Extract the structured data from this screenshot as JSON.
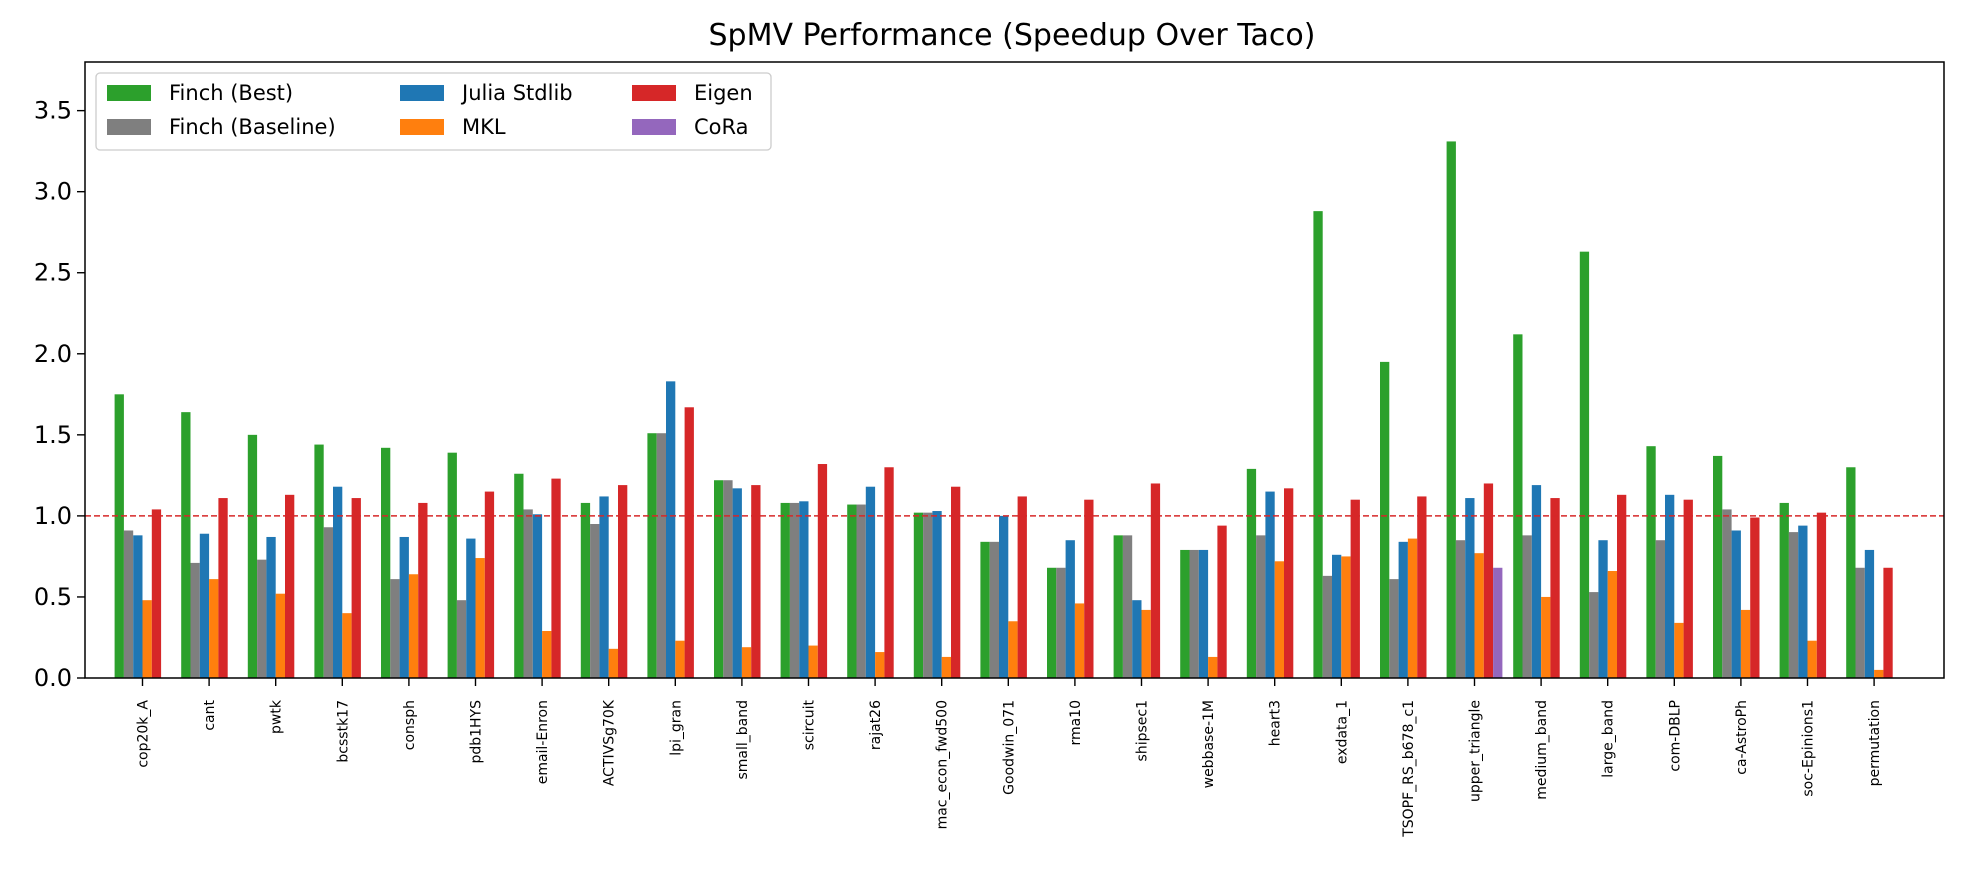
{
  "chart_data": {
    "type": "bar",
    "title": "SpMV Performance (Speedup Over Taco)",
    "xlabel": "",
    "ylabel": "",
    "ylim": [
      0,
      3.8
    ],
    "yticks": [
      "0.0",
      "0.5",
      "1.0",
      "1.5",
      "2.0",
      "2.5",
      "3.0",
      "3.5"
    ],
    "reference_line": {
      "y": 1.0,
      "style": "dashed",
      "color": "#d62728"
    },
    "grid": false,
    "legend_position": "top-left",
    "categories": [
      "cop20k_A",
      "cant",
      "pwtk",
      "bcsstk17",
      "consph",
      "pdb1HYS",
      "email-Enron",
      "ACTIVSg70K",
      "lpi_gran",
      "small_band",
      "scircuit",
      "rajat26",
      "mac_econ_fwd500",
      "Goodwin_071",
      "rma10",
      "shipsec1",
      "webbase-1M",
      "heart3",
      "exdata_1",
      "TSOPF_RS_b678_c1",
      "upper_triangle",
      "medium_band",
      "large_band",
      "com-DBLP",
      "ca-AstroPh",
      "soc-Epinions1",
      "permutation"
    ],
    "series": [
      {
        "name": "Finch (Best)",
        "color": "#2ca02c",
        "values": [
          1.75,
          1.64,
          1.5,
          1.44,
          1.42,
          1.39,
          1.26,
          1.08,
          1.51,
          1.22,
          1.08,
          1.07,
          1.02,
          0.84,
          0.68,
          0.88,
          0.79,
          1.29,
          2.88,
          1.95,
          3.31,
          2.12,
          2.63,
          1.43,
          1.37,
          1.08,
          1.3
        ]
      },
      {
        "name": "Finch (Baseline)",
        "color": "#7f7f7f",
        "values": [
          0.91,
          0.71,
          0.73,
          0.93,
          0.61,
          0.48,
          1.04,
          0.95,
          1.51,
          1.22,
          1.08,
          1.07,
          1.02,
          0.84,
          0.68,
          0.88,
          0.79,
          0.88,
          0.63,
          0.61,
          0.85,
          0.88,
          0.53,
          0.85,
          1.04,
          0.9,
          0.68
        ]
      },
      {
        "name": "Julia Stdlib",
        "color": "#1f77b4",
        "values": [
          0.88,
          0.89,
          0.87,
          1.18,
          0.87,
          0.86,
          1.01,
          1.12,
          1.83,
          1.17,
          1.09,
          1.18,
          1.03,
          1.0,
          0.85,
          0.48,
          0.79,
          1.15,
          0.76,
          0.84,
          1.11,
          1.19,
          0.85,
          1.13,
          0.91,
          0.94,
          0.79
        ]
      },
      {
        "name": "MKL",
        "color": "#ff7f0e",
        "values": [
          0.48,
          0.61,
          0.52,
          0.4,
          0.64,
          0.74,
          0.29,
          0.18,
          0.23,
          0.19,
          0.2,
          0.16,
          0.13,
          0.35,
          0.46,
          0.42,
          0.13,
          0.72,
          0.75,
          0.86,
          0.77,
          0.5,
          0.66,
          0.34,
          0.42,
          0.23,
          0.05
        ]
      },
      {
        "name": "Eigen",
        "color": "#d62728",
        "values": [
          1.04,
          1.11,
          1.13,
          1.11,
          1.08,
          1.15,
          1.23,
          1.19,
          1.67,
          1.19,
          1.32,
          1.3,
          1.18,
          1.12,
          1.1,
          1.2,
          0.94,
          1.17,
          1.1,
          1.12,
          1.2,
          1.11,
          1.13,
          1.1,
          0.99,
          1.02,
          0.68
        ]
      },
      {
        "name": "CoRa",
        "color": "#9467bd",
        "values": [
          null,
          null,
          null,
          null,
          null,
          null,
          null,
          null,
          null,
          null,
          null,
          null,
          null,
          null,
          null,
          null,
          null,
          null,
          null,
          null,
          0.68,
          null,
          null,
          null,
          null,
          null,
          null
        ]
      }
    ],
    "legend": {
      "columns": [
        [
          "Finch (Best)",
          "Finch (Baseline)"
        ],
        [
          "Julia Stdlib",
          "MKL"
        ],
        [
          "Eigen",
          "CoRa"
        ]
      ]
    }
  }
}
